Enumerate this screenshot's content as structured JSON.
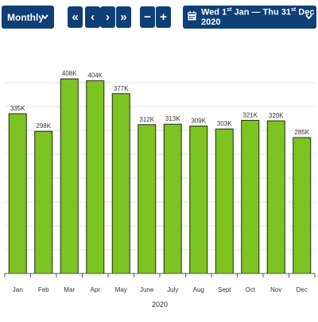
{
  "toolbar": {
    "period_label": "Monthly",
    "first_label": "«",
    "prev_label": "‹",
    "next_label": "›",
    "last_label": "»",
    "zoom_out_label": "−",
    "zoom_in_label": "+",
    "date_range": {
      "prefix": "Wed 1",
      "suffix1": "st",
      "middle": " Jan — Thu 31",
      "suffix2": "st",
      "end": " Dec 2020"
    },
    "icons": {
      "period_caret": "chevron-down-icon",
      "date_caret": "chevron-down-icon",
      "calendar": "calendar-icon"
    },
    "accent_color": "#0e3f76"
  },
  "chart_data": {
    "type": "bar",
    "categories": [
      "Jan",
      "Feb",
      "Mar",
      "Apr",
      "May",
      "June",
      "July",
      "Aug",
      "Sept",
      "Oct",
      "Nov",
      "Dec"
    ],
    "values": [
      335000,
      298000,
      408000,
      404000,
      377000,
      312000,
      313000,
      309000,
      303000,
      321000,
      320000,
      285000
    ],
    "data_labels": [
      "335K",
      "298K",
      "408K",
      "404K",
      "377K",
      "312K",
      "313K",
      "309K",
      "303K",
      "321K",
      "320K",
      "285K"
    ],
    "xlabel": "2020",
    "ylabel": "",
    "ylim": [
      0,
      450000
    ],
    "grid": true,
    "legend": "none",
    "bar_color": "#7dc321",
    "bar_stroke": "#1f2b0f"
  }
}
